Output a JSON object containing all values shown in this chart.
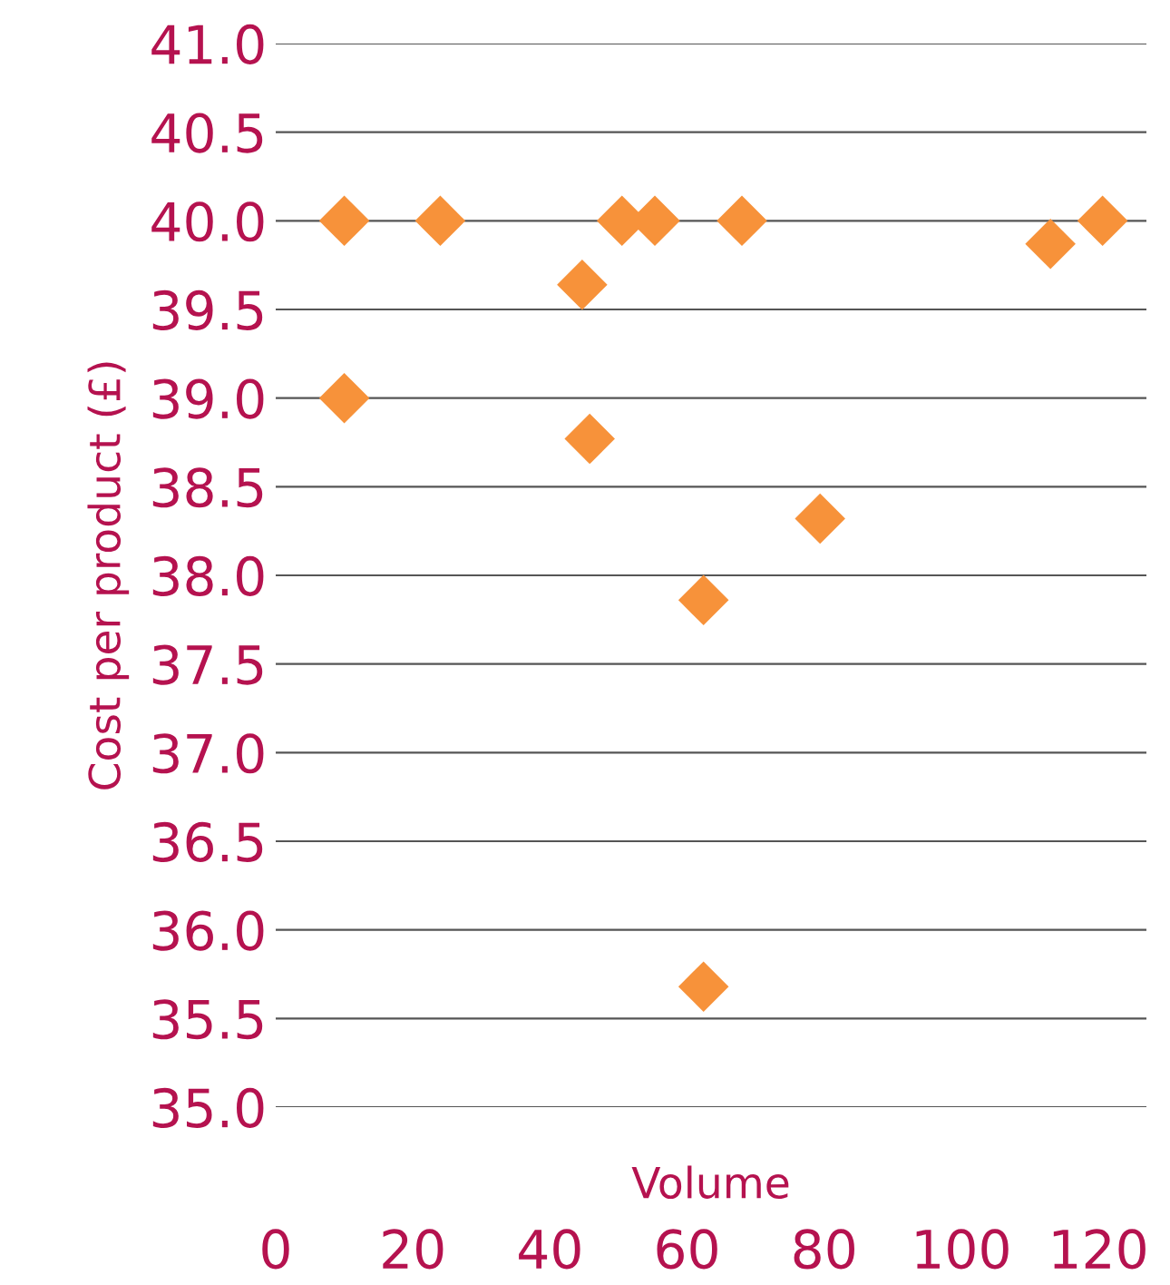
{
  "chart_data": {
    "type": "scatter",
    "xlabel": "Volume",
    "ylabel": "Cost per product (£)",
    "x": [
      10,
      10,
      24,
      44.7,
      45.8,
      50.5,
      55.3,
      62.4,
      62.4,
      68,
      79.4,
      113,
      120.6
    ],
    "series": [
      {
        "color": "#f7923a",
        "values": [
          40.0,
          39.0,
          40.0,
          39.64,
          38.77,
          40.0,
          40.0,
          37.86,
          35.68,
          40.0,
          38.32,
          39.87,
          40.0
        ]
      }
    ],
    "marker": "diamond",
    "grid": "y",
    "xlim": [
      0,
      127
    ],
    "xticks": [
      0,
      20,
      40,
      60,
      80,
      100,
      120
    ],
    "ylim": [
      35,
      41
    ],
    "yticks": [
      {
        "value": 35,
        "label": "35.0"
      },
      {
        "value": 35.5,
        "label": "35.5"
      },
      {
        "value": 36,
        "label": "36.0"
      },
      {
        "value": 36.5,
        "label": "36.5"
      },
      {
        "value": 37,
        "label": "37.0"
      },
      {
        "value": 37.5,
        "label": "37.5"
      },
      {
        "value": 38,
        "label": "38.0"
      },
      {
        "value": 38.5,
        "label": "38.5"
      },
      {
        "value": 39,
        "label": "39.0"
      },
      {
        "value": 39.5,
        "label": "39.5"
      },
      {
        "value": 40,
        "label": "40.0"
      },
      {
        "value": 40.5,
        "label": "40.5"
      },
      {
        "value": 41,
        "label": "41.0"
      }
    ]
  }
}
